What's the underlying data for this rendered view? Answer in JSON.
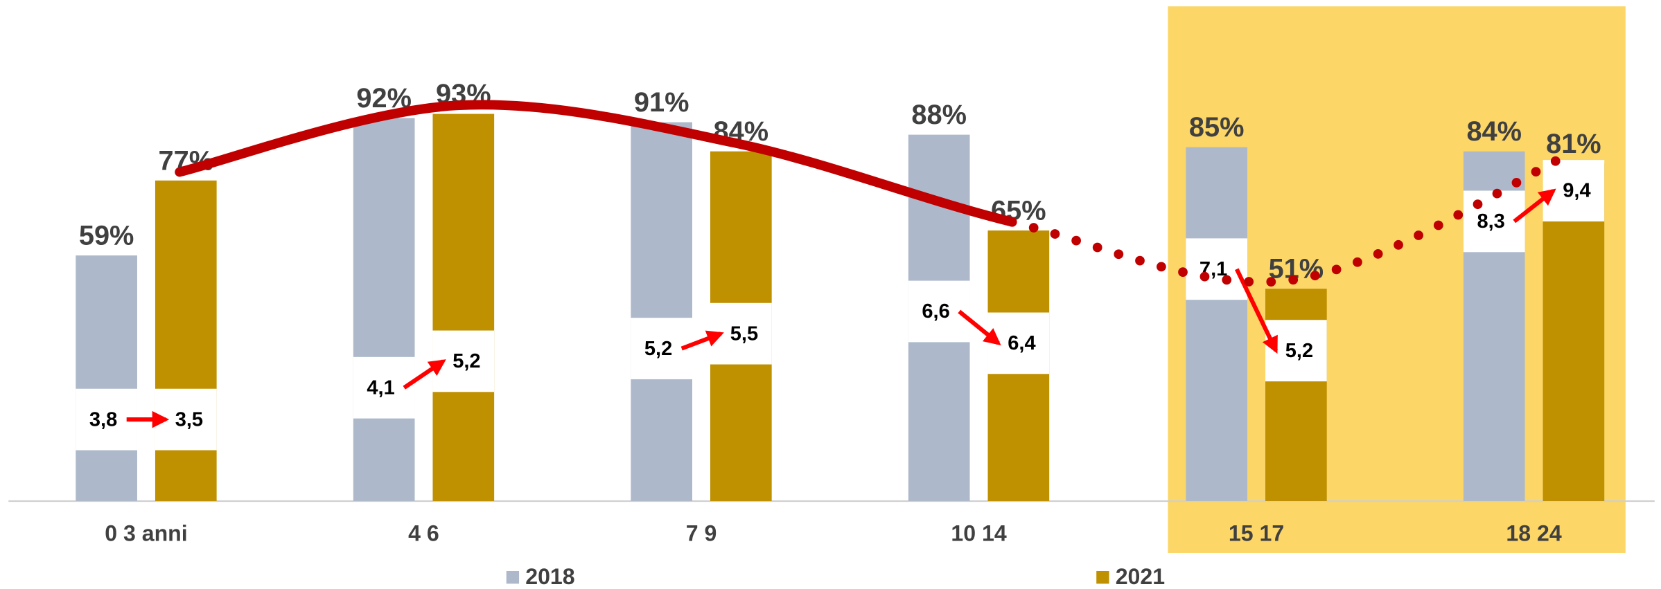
{
  "chart_data": {
    "type": "bar",
    "categories": [
      "0 3 anni",
      "4 6",
      "7 9",
      "10 14",
      "15 17",
      "18 24"
    ],
    "series": [
      {
        "name": "2018",
        "color": "#adb9ca",
        "values": [
          59,
          92,
          91,
          88,
          85,
          84
        ],
        "value_labels": [
          "59%",
          "92%",
          "91%",
          "88%",
          "85%",
          "84%"
        ],
        "inner_values": [
          3.8,
          4.1,
          5.2,
          6.6,
          7.1,
          8.3
        ],
        "inner_value_labels": [
          "3,8",
          "4,1",
          "5,2",
          "6,6",
          "7,1",
          "8,3"
        ]
      },
      {
        "name": "2021",
        "color": "#bf9000",
        "values": [
          77,
          93,
          84,
          65,
          51,
          81
        ],
        "value_labels": [
          "77%",
          "93%",
          "84%",
          "65%",
          "51%",
          "81%"
        ],
        "inner_values": [
          3.5,
          5.2,
          5.5,
          6.4,
          5.2,
          9.4
        ],
        "inner_value_labels": [
          "3,5",
          "5,2",
          "5,5",
          "6,4",
          "5,2",
          "9,4"
        ]
      }
    ],
    "ylim": [
      0,
      100
    ],
    "highlight_categories": [
      4,
      5
    ],
    "highlight_color": "#fcd667",
    "trend": {
      "color": "#c00000",
      "dotted_from": 3
    },
    "arrow_color": "#ff0000",
    "legend": "bottom"
  }
}
